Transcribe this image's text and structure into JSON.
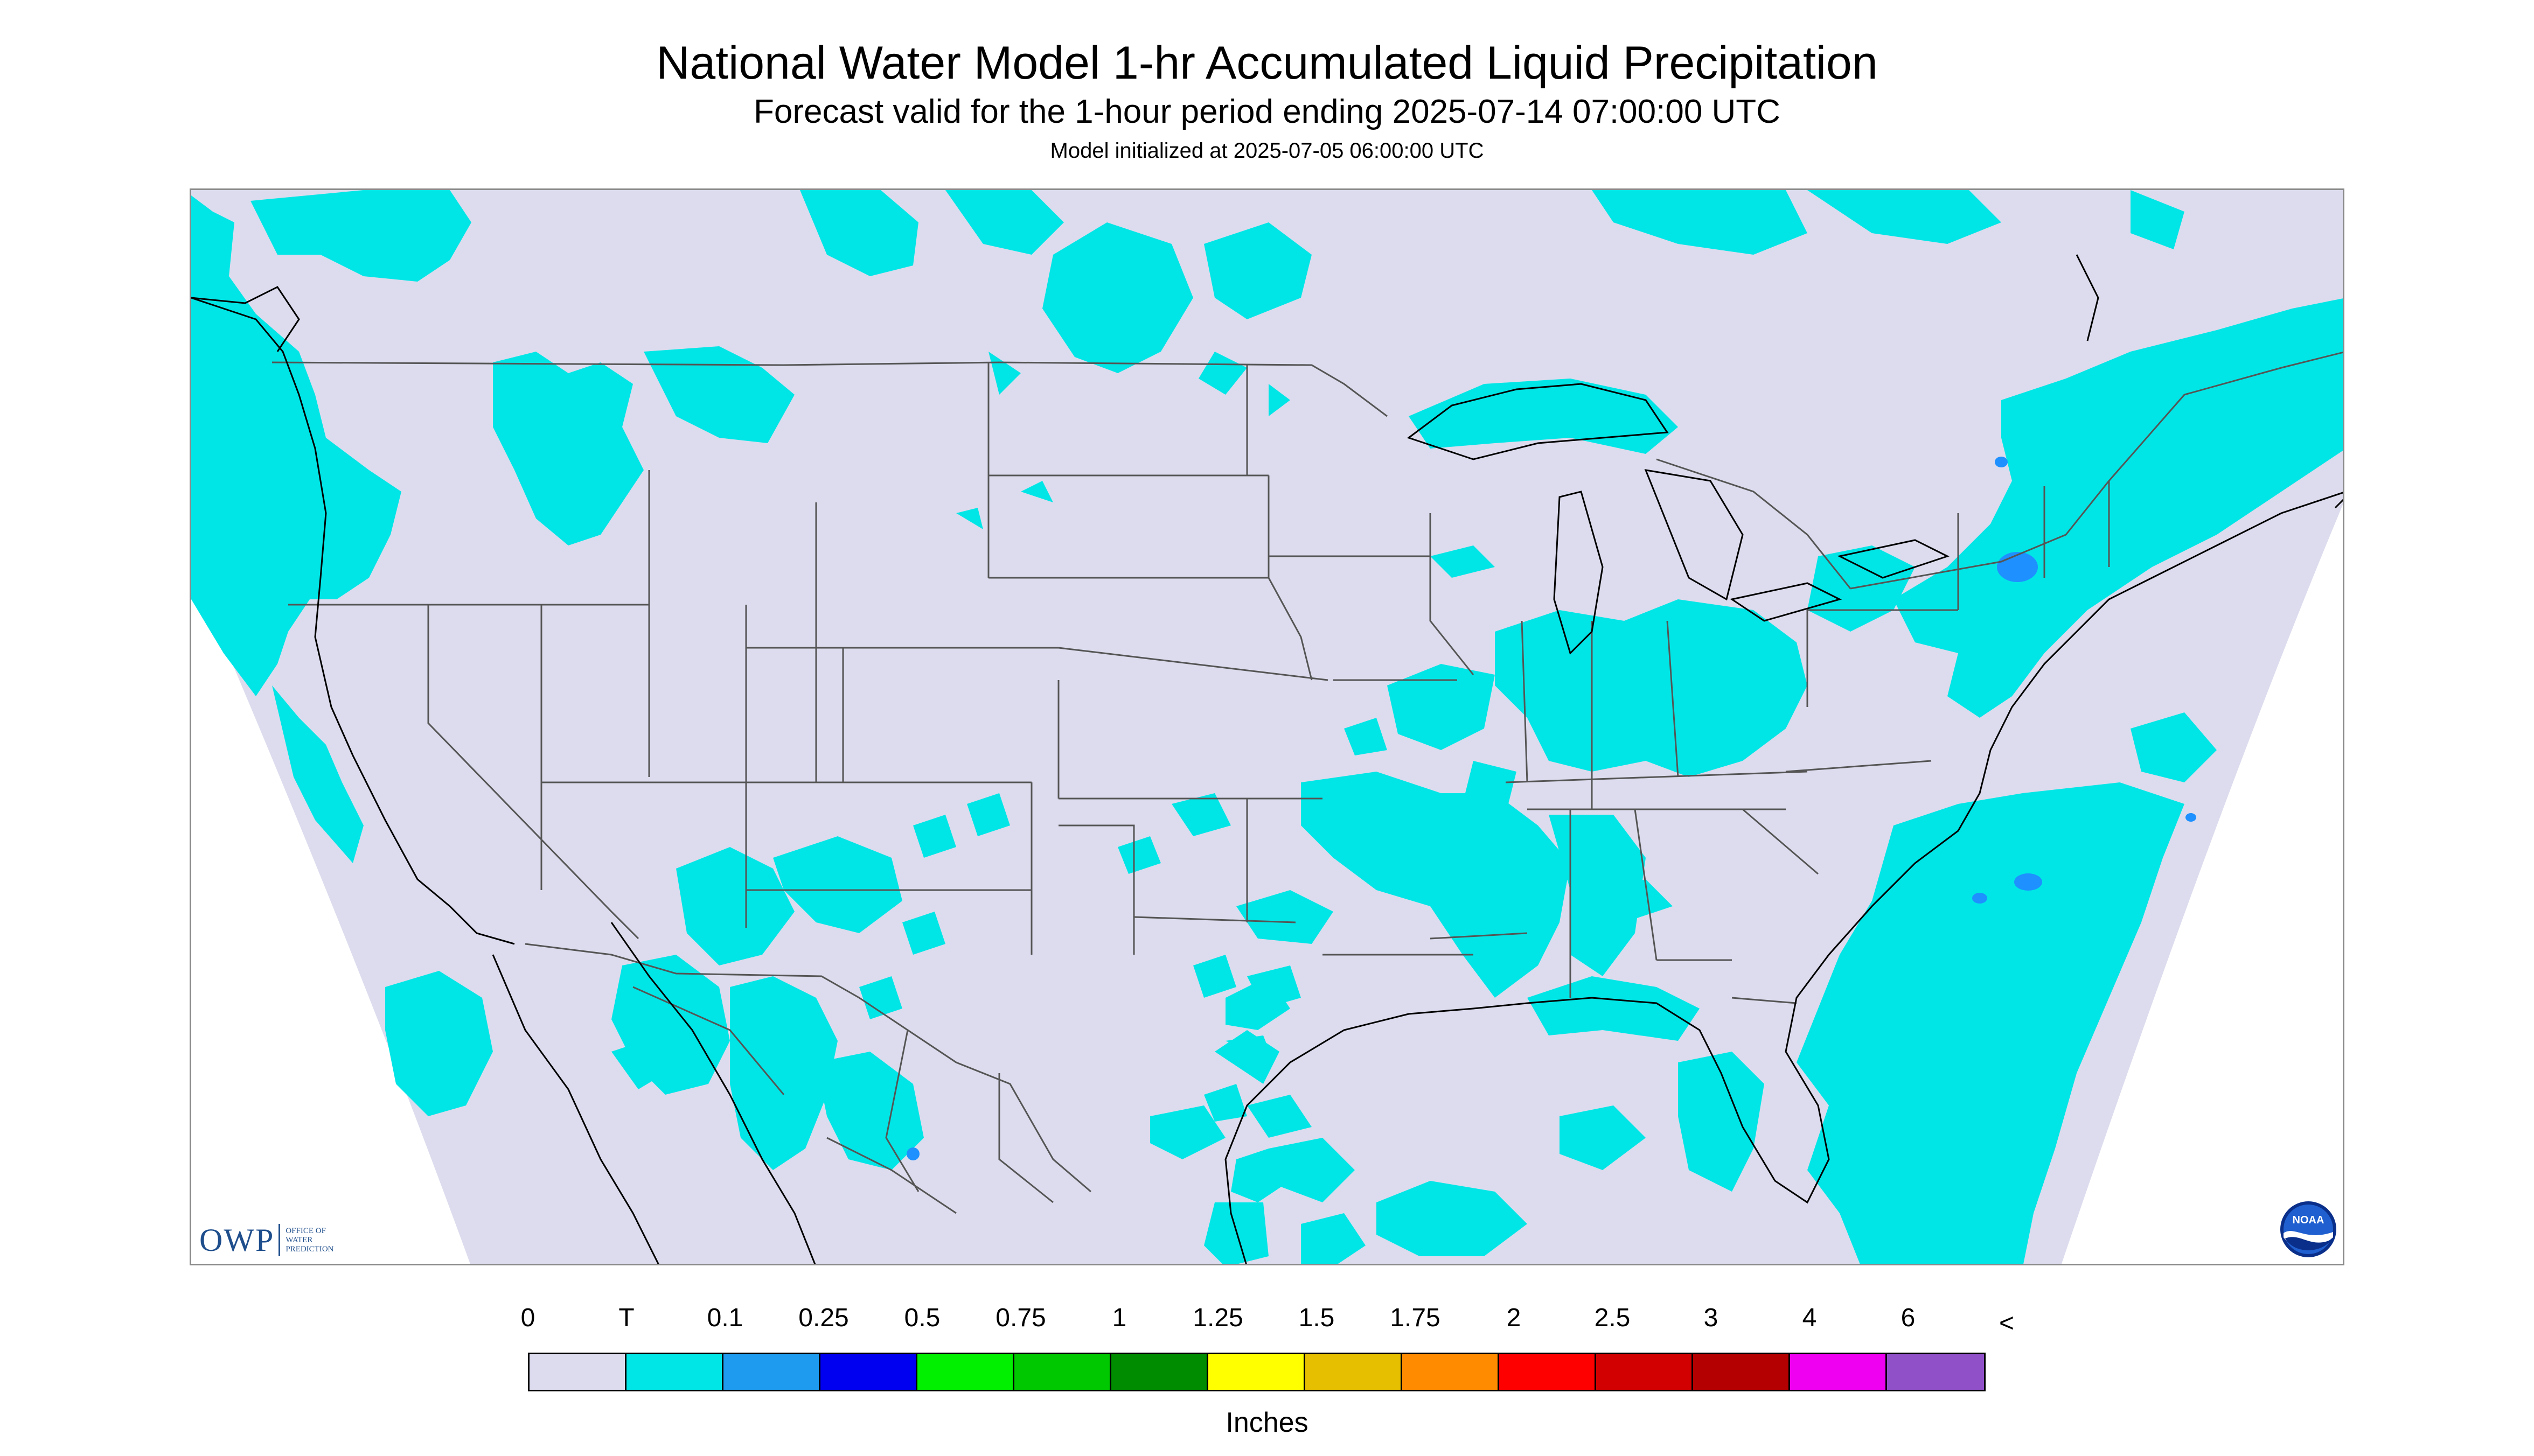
{
  "header": {
    "title": "National Water Model 1-hr Accumulated Liquid Precipitation",
    "subtitle": "Forecast valid for the 1-hour period ending 2025-07-14 07:00:00 UTC",
    "initialized": "Model initialized at 2025-07-05 06:00:00 UTC"
  },
  "map": {
    "background_color": "#dcdcee",
    "precip_trace_color": "#00e6e6",
    "precip_light_color": "#1e90ff",
    "boundary_color": "#555555",
    "coast_color": "#000000"
  },
  "logos": {
    "owp_text": "OWP",
    "owp_sub": [
      "OFFICE OF",
      "WATER",
      "PREDICTION"
    ],
    "noaa_text": "NOAA"
  },
  "legend": {
    "labels": [
      "0",
      "T",
      "0.1",
      "0.25",
      "0.5",
      "0.75",
      "1",
      "1.25",
      "1.5",
      "1.75",
      "2",
      "2.5",
      "3",
      "4",
      "6",
      "<"
    ],
    "colors": [
      "#dcdcee",
      "#00e6e6",
      "#1e9bef",
      "#0000f0",
      "#00f000",
      "#00c800",
      "#008c00",
      "#ffff00",
      "#e6bf00",
      "#ff8c00",
      "#ff0000",
      "#d20000",
      "#b40000",
      "#f000f0",
      "#9050c8"
    ],
    "units": "Inches"
  }
}
